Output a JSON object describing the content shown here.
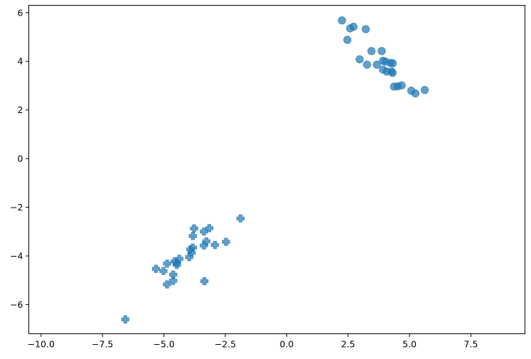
{
  "chart_data": {
    "type": "scatter",
    "title": "",
    "xlabel": "",
    "ylabel": "",
    "xlim": [
      -10.5,
      9.7
    ],
    "ylim": [
      -7.2,
      6.3
    ],
    "xticks": [
      -10.0,
      -7.5,
      -5.0,
      -2.5,
      0.0,
      2.5,
      5.0,
      7.5
    ],
    "xtick_labels": [
      "−10.0",
      "−7.5",
      "−5.0",
      "−2.5",
      "0.0",
      "2.5",
      "5.0",
      "7.5"
    ],
    "yticks": [
      -6,
      -4,
      -2,
      0,
      2,
      4,
      6
    ],
    "ytick_labels": [
      "−6",
      "−4",
      "−2",
      "0",
      "2",
      "4",
      "6"
    ],
    "grid": false,
    "legend": "none",
    "color": "#1f77b4",
    "alpha": 0.7,
    "series": [
      {
        "marker": "circle",
        "points": [
          [
            2.25,
            5.68
          ],
          [
            2.72,
            5.42
          ],
          [
            2.58,
            5.35
          ],
          [
            3.22,
            5.32
          ],
          [
            2.47,
            4.88
          ],
          [
            3.45,
            4.42
          ],
          [
            3.87,
            4.42
          ],
          [
            2.97,
            4.08
          ],
          [
            3.27,
            3.86
          ],
          [
            3.67,
            3.86
          ],
          [
            3.92,
            4.02
          ],
          [
            4.02,
            3.99
          ],
          [
            4.22,
            3.93
          ],
          [
            4.32,
            3.92
          ],
          [
            3.92,
            3.66
          ],
          [
            4.07,
            3.58
          ],
          [
            4.27,
            3.58
          ],
          [
            4.31,
            3.52
          ],
          [
            4.37,
            2.96
          ],
          [
            4.52,
            2.97
          ],
          [
            4.68,
            3.01
          ],
          [
            5.07,
            2.79
          ],
          [
            5.24,
            2.68
          ],
          [
            5.62,
            2.82
          ]
        ]
      },
      {
        "marker": "plus",
        "points": [
          [
            -1.88,
            -2.46
          ],
          [
            -3.15,
            -2.86
          ],
          [
            -3.77,
            -2.87
          ],
          [
            -3.37,
            -3.0
          ],
          [
            -3.82,
            -3.18
          ],
          [
            -2.47,
            -3.42
          ],
          [
            -3.27,
            -3.4
          ],
          [
            -3.37,
            -3.57
          ],
          [
            -2.92,
            -3.55
          ],
          [
            -3.82,
            -3.66
          ],
          [
            -3.92,
            -3.73
          ],
          [
            -3.87,
            -3.87
          ],
          [
            -3.97,
            -4.05
          ],
          [
            -4.37,
            -4.12
          ],
          [
            -4.57,
            -4.23
          ],
          [
            -4.47,
            -4.28
          ],
          [
            -4.87,
            -4.32
          ],
          [
            -4.47,
            -4.37
          ],
          [
            -5.32,
            -4.53
          ],
          [
            -5.02,
            -4.62
          ],
          [
            -4.62,
            -4.77
          ],
          [
            -4.62,
            -5.02
          ],
          [
            -3.35,
            -5.04
          ],
          [
            -4.87,
            -5.17
          ],
          [
            -6.57,
            -6.61
          ]
        ]
      }
    ]
  }
}
